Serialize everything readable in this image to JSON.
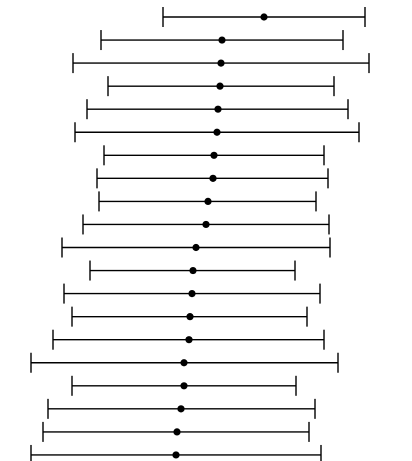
{
  "chart_data": {
    "type": "forest",
    "title": "",
    "xlabel": "",
    "ylabel": "",
    "xlim": [
      0,
      412
    ],
    "grid": false,
    "legend": "none",
    "marker_color": "#000000",
    "line_color": "#000000",
    "rows": [
      {
        "estimate": 264,
        "lower": 163,
        "upper": 365
      },
      {
        "estimate": 222,
        "lower": 101,
        "upper": 343
      },
      {
        "estimate": 221,
        "lower": 73,
        "upper": 369
      },
      {
        "estimate": 220,
        "lower": 108,
        "upper": 334
      },
      {
        "estimate": 218,
        "lower": 87,
        "upper": 348
      },
      {
        "estimate": 217,
        "lower": 75,
        "upper": 359
      },
      {
        "estimate": 214,
        "lower": 104,
        "upper": 324
      },
      {
        "estimate": 213,
        "lower": 97,
        "upper": 328
      },
      {
        "estimate": 208,
        "lower": 99,
        "upper": 316
      },
      {
        "estimate": 206,
        "lower": 83,
        "upper": 329
      },
      {
        "estimate": 196,
        "lower": 62,
        "upper": 330
      },
      {
        "estimate": 193,
        "lower": 90,
        "upper": 295
      },
      {
        "estimate": 192,
        "lower": 64,
        "upper": 320
      },
      {
        "estimate": 190,
        "lower": 72,
        "upper": 307
      },
      {
        "estimate": 189,
        "lower": 53,
        "upper": 324
      },
      {
        "estimate": 184,
        "lower": 31,
        "upper": 338
      },
      {
        "estimate": 184,
        "lower": 72,
        "upper": 296
      },
      {
        "estimate": 181,
        "lower": 48,
        "upper": 315
      },
      {
        "estimate": 177,
        "lower": 43,
        "upper": 309
      },
      {
        "estimate": 176,
        "lower": 31,
        "upper": 321
      }
    ]
  }
}
